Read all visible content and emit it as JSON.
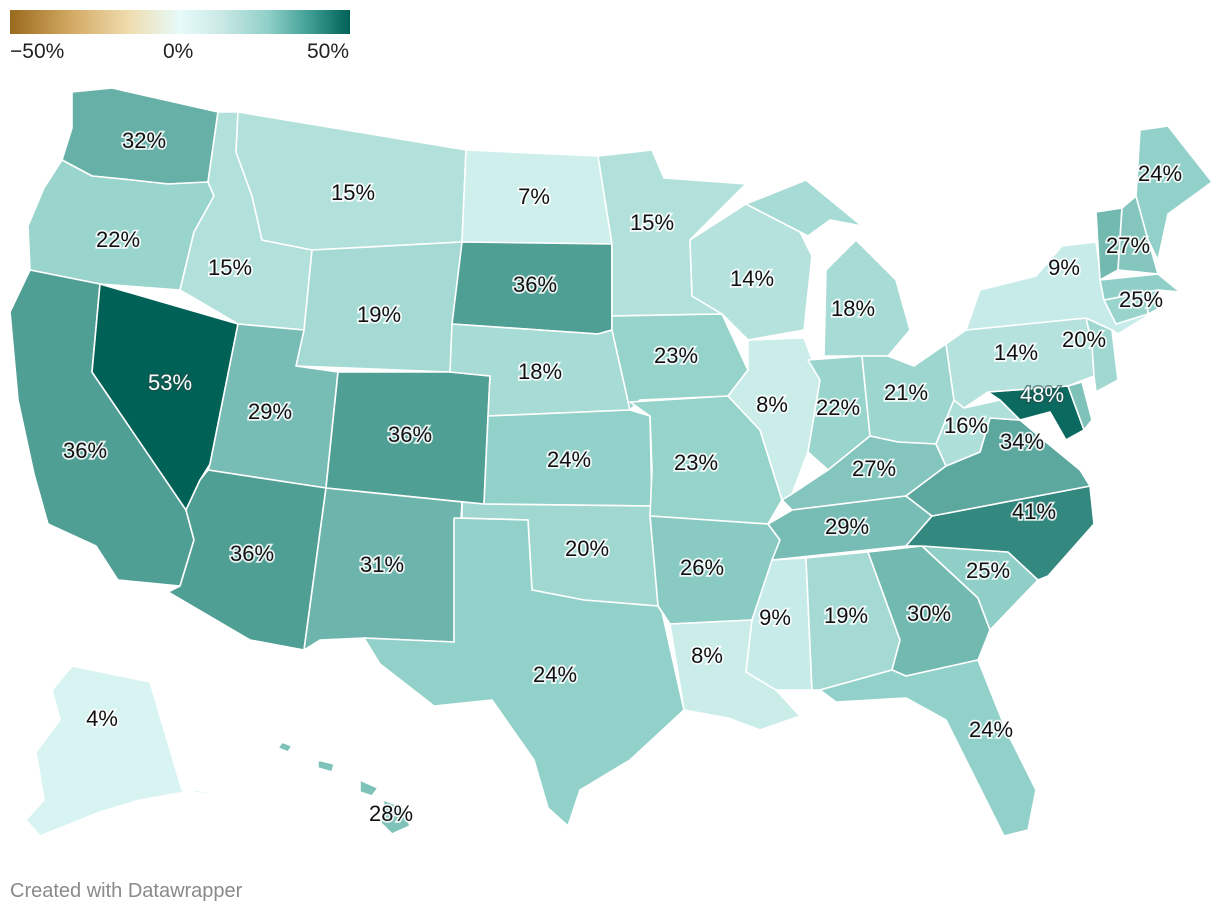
{
  "legend": {
    "min_label": "−50%",
    "mid_label": "0%",
    "max_label": "50%",
    "colors": [
      "#9a6a1e",
      "#efdcae",
      "#e6fbfa",
      "#8fcfc7",
      "#006156"
    ]
  },
  "credit": "Created with Datawrapper",
  "states": {
    "WA": {
      "value": 32,
      "label": "32%"
    },
    "OR": {
      "value": 22,
      "label": "22%"
    },
    "CA": {
      "value": 36,
      "label": "36%"
    },
    "NV": {
      "value": 53,
      "label": "53%"
    },
    "ID": {
      "value": 15,
      "label": "15%"
    },
    "MT": {
      "value": 15,
      "label": "15%"
    },
    "WY": {
      "value": 19,
      "label": "19%"
    },
    "UT": {
      "value": 29,
      "label": "29%"
    },
    "AZ": {
      "value": 36,
      "label": "36%"
    },
    "CO": {
      "value": 36,
      "label": "36%"
    },
    "NM": {
      "value": 31,
      "label": "31%"
    },
    "ND": {
      "value": 7,
      "label": "7%"
    },
    "SD": {
      "value": 36,
      "label": "36%"
    },
    "NE": {
      "value": 18,
      "label": "18%"
    },
    "KS": {
      "value": 24,
      "label": "24%"
    },
    "OK": {
      "value": 20,
      "label": "20%"
    },
    "TX": {
      "value": 24,
      "label": "24%"
    },
    "MN": {
      "value": 15,
      "label": "15%"
    },
    "IA": {
      "value": 23,
      "label": "23%"
    },
    "MO": {
      "value": 23,
      "label": "23%"
    },
    "AR": {
      "value": 26,
      "label": "26%"
    },
    "LA": {
      "value": 8,
      "label": "8%"
    },
    "WI": {
      "value": 14,
      "label": "14%"
    },
    "IL": {
      "value": 8,
      "label": "8%"
    },
    "MI": {
      "value": 18,
      "label": "18%"
    },
    "IN": {
      "value": 22,
      "label": "22%"
    },
    "OH": {
      "value": 21,
      "label": "21%"
    },
    "KY": {
      "value": 27,
      "label": "27%"
    },
    "TN": {
      "value": 29,
      "label": "29%"
    },
    "MS": {
      "value": 9,
      "label": "9%"
    },
    "AL": {
      "value": 19,
      "label": "19%"
    },
    "GA": {
      "value": 30,
      "label": "30%"
    },
    "FL": {
      "value": 24,
      "label": "24%"
    },
    "SC": {
      "value": 25,
      "label": "25%"
    },
    "NC": {
      "value": 41,
      "label": "41%"
    },
    "VA": {
      "value": 34,
      "label": "34%"
    },
    "WV": {
      "value": 16,
      "label": "16%"
    },
    "MD": {
      "value": 48,
      "label": "48%"
    },
    "DE": {
      "value": 28
    },
    "PA": {
      "value": 14,
      "label": "14%"
    },
    "NJ": {
      "value": 20,
      "label": "20%"
    },
    "NY": {
      "value": 9,
      "label": "9%"
    },
    "CT": {
      "value": 22
    },
    "RI": {
      "value": 24
    },
    "MA": {
      "value": 25,
      "label": "25%"
    },
    "VT": {
      "value": 30
    },
    "NH": {
      "value": 27,
      "label": "27%"
    },
    "ME": {
      "value": 24,
      "label": "24%"
    },
    "AK": {
      "value": 4,
      "label": "4%"
    },
    "HI": {
      "value": 28,
      "label": "28%"
    }
  }
}
